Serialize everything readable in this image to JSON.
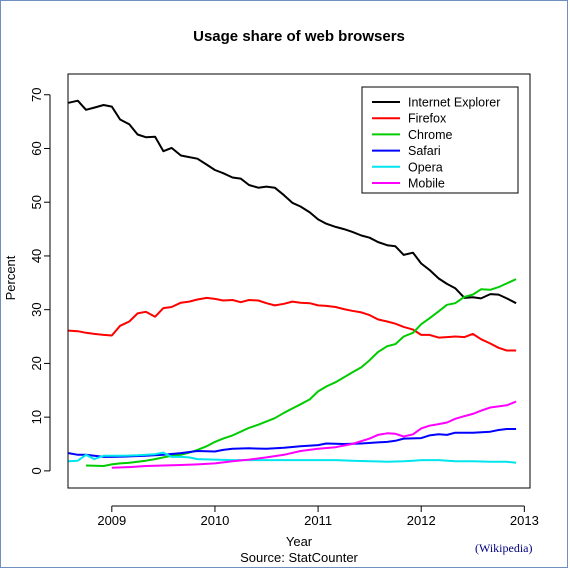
{
  "chart_data": {
    "type": "line",
    "title": "Usage share of web browsers",
    "xlabel": "Year",
    "ylabel": "Percent",
    "caption": "Source: StatCounter",
    "xlim": [
      2008.58,
      2013.05
    ],
    "ylim": [
      -3,
      72
    ],
    "x_ticks": [
      2009,
      2010,
      2011,
      2012,
      2013
    ],
    "y_ticks": [
      0,
      10,
      20,
      30,
      40,
      50,
      60,
      70
    ],
    "grid": false,
    "legend_position": "top-right",
    "series": [
      {
        "name": "Internet Explorer",
        "color": "#000000",
        "points": [
          [
            2008.58,
            68.5
          ],
          [
            2008.67,
            68.9
          ],
          [
            2008.75,
            67.2
          ],
          [
            2008.83,
            67.6
          ],
          [
            2008.92,
            68.1
          ],
          [
            2009.0,
            67.8
          ],
          [
            2009.08,
            65.4
          ],
          [
            2009.17,
            64.5
          ],
          [
            2009.25,
            62.6
          ],
          [
            2009.33,
            62.1
          ],
          [
            2009.42,
            62.2
          ],
          [
            2009.5,
            59.5
          ],
          [
            2009.58,
            60.1
          ],
          [
            2009.67,
            58.7
          ],
          [
            2009.75,
            58.4
          ],
          [
            2009.83,
            58.1
          ],
          [
            2009.92,
            57.0
          ],
          [
            2010.0,
            56.0
          ],
          [
            2010.08,
            55.4
          ],
          [
            2010.17,
            54.6
          ],
          [
            2010.25,
            54.4
          ],
          [
            2010.33,
            53.2
          ],
          [
            2010.42,
            52.7
          ],
          [
            2010.5,
            52.9
          ],
          [
            2010.58,
            52.7
          ],
          [
            2010.67,
            51.3
          ],
          [
            2010.75,
            49.9
          ],
          [
            2010.83,
            49.2
          ],
          [
            2010.92,
            48.1
          ],
          [
            2011.0,
            46.8
          ],
          [
            2011.08,
            46.0
          ],
          [
            2011.17,
            45.4
          ],
          [
            2011.25,
            45.0
          ],
          [
            2011.33,
            44.5
          ],
          [
            2011.42,
            43.8
          ],
          [
            2011.5,
            43.4
          ],
          [
            2011.58,
            42.6
          ],
          [
            2011.67,
            42.0
          ],
          [
            2011.75,
            41.8
          ],
          [
            2011.83,
            40.2
          ],
          [
            2011.92,
            40.6
          ],
          [
            2012.0,
            38.6
          ],
          [
            2012.08,
            37.4
          ],
          [
            2012.17,
            35.8
          ],
          [
            2012.25,
            34.8
          ],
          [
            2012.33,
            34.0
          ],
          [
            2012.42,
            32.2
          ],
          [
            2012.5,
            32.3
          ],
          [
            2012.58,
            32.1
          ],
          [
            2012.67,
            32.9
          ],
          [
            2012.75,
            32.8
          ],
          [
            2012.83,
            32.1
          ],
          [
            2012.92,
            31.2
          ]
        ]
      },
      {
        "name": "Firefox",
        "color": "#ff0000",
        "points": [
          [
            2008.58,
            26.1
          ],
          [
            2008.67,
            26.0
          ],
          [
            2008.75,
            25.7
          ],
          [
            2008.83,
            25.5
          ],
          [
            2008.92,
            25.3
          ],
          [
            2009.0,
            25.2
          ],
          [
            2009.08,
            27.0
          ],
          [
            2009.17,
            27.8
          ],
          [
            2009.25,
            29.3
          ],
          [
            2009.33,
            29.6
          ],
          [
            2009.42,
            28.7
          ],
          [
            2009.5,
            30.3
          ],
          [
            2009.58,
            30.5
          ],
          [
            2009.67,
            31.3
          ],
          [
            2009.75,
            31.5
          ],
          [
            2009.83,
            31.9
          ],
          [
            2009.92,
            32.2
          ],
          [
            2010.0,
            32.0
          ],
          [
            2010.08,
            31.7
          ],
          [
            2010.17,
            31.8
          ],
          [
            2010.25,
            31.4
          ],
          [
            2010.33,
            31.8
          ],
          [
            2010.42,
            31.7
          ],
          [
            2010.5,
            31.2
          ],
          [
            2010.58,
            30.8
          ],
          [
            2010.67,
            31.1
          ],
          [
            2010.75,
            31.5
          ],
          [
            2010.83,
            31.3
          ],
          [
            2010.92,
            31.2
          ],
          [
            2011.0,
            30.8
          ],
          [
            2011.08,
            30.7
          ],
          [
            2011.17,
            30.5
          ],
          [
            2011.25,
            30.1
          ],
          [
            2011.33,
            29.8
          ],
          [
            2011.42,
            29.5
          ],
          [
            2011.5,
            29.0
          ],
          [
            2011.58,
            28.2
          ],
          [
            2011.67,
            27.8
          ],
          [
            2011.75,
            27.4
          ],
          [
            2011.83,
            26.8
          ],
          [
            2011.92,
            26.3
          ],
          [
            2012.0,
            25.3
          ],
          [
            2012.08,
            25.3
          ],
          [
            2012.17,
            24.8
          ],
          [
            2012.25,
            24.9
          ],
          [
            2012.33,
            25.0
          ],
          [
            2012.42,
            24.9
          ],
          [
            2012.5,
            25.5
          ],
          [
            2012.58,
            24.5
          ],
          [
            2012.67,
            23.7
          ],
          [
            2012.75,
            22.9
          ],
          [
            2012.83,
            22.4
          ],
          [
            2012.92,
            22.4
          ]
        ]
      },
      {
        "name": "Chrome",
        "color": "#00cc00",
        "points": [
          [
            2008.75,
            1.0
          ],
          [
            2008.92,
            0.9
          ],
          [
            2009.0,
            1.2
          ],
          [
            2009.08,
            1.4
          ],
          [
            2009.17,
            1.5
          ],
          [
            2009.25,
            1.7
          ],
          [
            2009.33,
            1.9
          ],
          [
            2009.42,
            2.2
          ],
          [
            2009.5,
            2.5
          ],
          [
            2009.58,
            2.8
          ],
          [
            2009.67,
            3.0
          ],
          [
            2009.75,
            3.4
          ],
          [
            2009.83,
            3.9
          ],
          [
            2009.92,
            4.6
          ],
          [
            2010.0,
            5.4
          ],
          [
            2010.08,
            6.0
          ],
          [
            2010.17,
            6.6
          ],
          [
            2010.25,
            7.3
          ],
          [
            2010.33,
            8.0
          ],
          [
            2010.42,
            8.6
          ],
          [
            2010.5,
            9.2
          ],
          [
            2010.58,
            9.8
          ],
          [
            2010.67,
            10.8
          ],
          [
            2010.75,
            11.6
          ],
          [
            2010.83,
            12.4
          ],
          [
            2010.92,
            13.3
          ],
          [
            2011.0,
            14.8
          ],
          [
            2011.08,
            15.7
          ],
          [
            2011.17,
            16.5
          ],
          [
            2011.25,
            17.4
          ],
          [
            2011.33,
            18.3
          ],
          [
            2011.42,
            19.3
          ],
          [
            2011.5,
            20.6
          ],
          [
            2011.58,
            22.1
          ],
          [
            2011.67,
            23.2
          ],
          [
            2011.75,
            23.6
          ],
          [
            2011.83,
            25.0
          ],
          [
            2011.92,
            25.7
          ],
          [
            2012.0,
            27.3
          ],
          [
            2012.08,
            28.4
          ],
          [
            2012.17,
            29.7
          ],
          [
            2012.25,
            30.9
          ],
          [
            2012.33,
            31.2
          ],
          [
            2012.42,
            32.4
          ],
          [
            2012.5,
            32.8
          ],
          [
            2012.58,
            33.8
          ],
          [
            2012.67,
            33.7
          ],
          [
            2012.75,
            34.2
          ],
          [
            2012.83,
            34.9
          ],
          [
            2012.92,
            35.7
          ]
        ]
      },
      {
        "name": "Safari",
        "color": "#0000ff",
        "points": [
          [
            2008.58,
            3.3
          ],
          [
            2008.67,
            3.0
          ],
          [
            2008.75,
            3.0
          ],
          [
            2008.83,
            2.8
          ],
          [
            2008.92,
            2.6
          ],
          [
            2009.0,
            2.6
          ],
          [
            2009.17,
            2.7
          ],
          [
            2009.33,
            2.8
          ],
          [
            2009.5,
            3.0
          ],
          [
            2009.67,
            3.3
          ],
          [
            2009.83,
            3.7
          ],
          [
            2010.0,
            3.6
          ],
          [
            2010.08,
            3.9
          ],
          [
            2010.17,
            4.1
          ],
          [
            2010.33,
            4.2
          ],
          [
            2010.5,
            4.1
          ],
          [
            2010.67,
            4.3
          ],
          [
            2010.83,
            4.6
          ],
          [
            2011.0,
            4.8
          ],
          [
            2011.08,
            5.1
          ],
          [
            2011.25,
            5.0
          ],
          [
            2011.42,
            5.1
          ],
          [
            2011.58,
            5.3
          ],
          [
            2011.67,
            5.4
          ],
          [
            2011.75,
            5.6
          ],
          [
            2011.83,
            6.0
          ],
          [
            2012.0,
            6.1
          ],
          [
            2012.08,
            6.6
          ],
          [
            2012.17,
            6.8
          ],
          [
            2012.25,
            6.7
          ],
          [
            2012.33,
            7.1
          ],
          [
            2012.5,
            7.1
          ],
          [
            2012.67,
            7.3
          ],
          [
            2012.75,
            7.6
          ],
          [
            2012.83,
            7.8
          ],
          [
            2012.92,
            7.8
          ]
        ]
      },
      {
        "name": "Opera",
        "color": "#00e5ee",
        "points": [
          [
            2008.58,
            1.8
          ],
          [
            2008.67,
            1.9
          ],
          [
            2008.75,
            3.0
          ],
          [
            2008.83,
            2.2
          ],
          [
            2008.92,
            2.8
          ],
          [
            2009.08,
            2.8
          ],
          [
            2009.25,
            2.9
          ],
          [
            2009.42,
            3.1
          ],
          [
            2009.5,
            3.4
          ],
          [
            2009.58,
            2.6
          ],
          [
            2009.67,
            2.6
          ],
          [
            2009.75,
            2.5
          ],
          [
            2009.83,
            2.2
          ],
          [
            2010.0,
            2.1
          ],
          [
            2010.17,
            2.0
          ],
          [
            2010.33,
            2.0
          ],
          [
            2010.5,
            2.0
          ],
          [
            2010.67,
            2.0
          ],
          [
            2010.83,
            2.0
          ],
          [
            2011.0,
            2.0
          ],
          [
            2011.17,
            2.0
          ],
          [
            2011.33,
            1.9
          ],
          [
            2011.5,
            1.8
          ],
          [
            2011.67,
            1.7
          ],
          [
            2011.83,
            1.8
          ],
          [
            2011.92,
            1.9
          ],
          [
            2012.0,
            2.0
          ],
          [
            2012.17,
            2.0
          ],
          [
            2012.33,
            1.8
          ],
          [
            2012.5,
            1.8
          ],
          [
            2012.67,
            1.7
          ],
          [
            2012.83,
            1.7
          ],
          [
            2012.92,
            1.5
          ]
        ]
      },
      {
        "name": "Mobile",
        "color": "#ff00ff",
        "points": [
          [
            2009.0,
            0.6
          ],
          [
            2009.17,
            0.7
          ],
          [
            2009.33,
            0.9
          ],
          [
            2009.5,
            1.0
          ],
          [
            2009.67,
            1.1
          ],
          [
            2009.83,
            1.2
          ],
          [
            2010.0,
            1.4
          ],
          [
            2010.17,
            1.8
          ],
          [
            2010.33,
            2.1
          ],
          [
            2010.5,
            2.5
          ],
          [
            2010.67,
            3.0
          ],
          [
            2010.83,
            3.7
          ],
          [
            2011.0,
            4.1
          ],
          [
            2011.17,
            4.4
          ],
          [
            2011.33,
            5.0
          ],
          [
            2011.5,
            6.0
          ],
          [
            2011.58,
            6.7
          ],
          [
            2011.67,
            7.0
          ],
          [
            2011.75,
            6.9
          ],
          [
            2011.83,
            6.4
          ],
          [
            2011.92,
            6.8
          ],
          [
            2012.0,
            7.9
          ],
          [
            2012.08,
            8.4
          ],
          [
            2012.17,
            8.7
          ],
          [
            2012.25,
            9.0
          ],
          [
            2012.33,
            9.7
          ],
          [
            2012.42,
            10.2
          ],
          [
            2012.5,
            10.6
          ],
          [
            2012.58,
            11.2
          ],
          [
            2012.67,
            11.8
          ],
          [
            2012.75,
            12.0
          ],
          [
            2012.83,
            12.2
          ],
          [
            2012.92,
            12.9
          ]
        ]
      }
    ]
  },
  "credit": "(Wikipedia)"
}
